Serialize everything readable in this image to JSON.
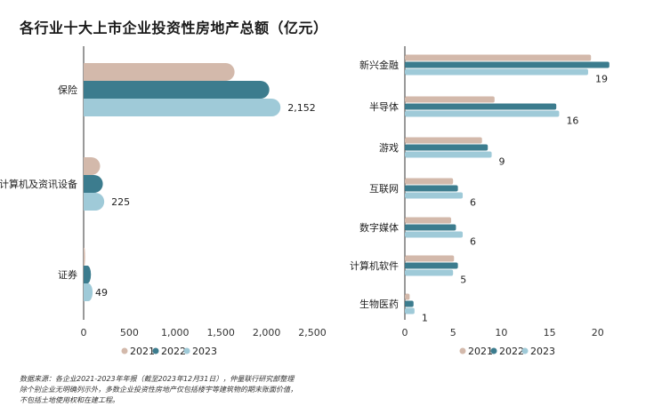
{
  "title": "各行业十大上市企业投资性房地产总额（亿元）",
  "footnote": [
    "数据来源：各企业2021-2023年年报（截至2023年12月31日），仲量联行研究部整理",
    "除个别企业无明确列示外，多数企业投资性房地产仅包括楼宇等建筑物的期末账面价值，",
    "不包括土地使用权和在建工程。"
  ],
  "colors": {
    "2021": "#d3b9ab",
    "2022": "#3c7c8e",
    "2023": "#9fcad8"
  },
  "chart_data": [
    {
      "type": "bar",
      "orientation": "horizontal",
      "categories": [
        "保险",
        "计算机及资讯设备",
        "证券"
      ],
      "series": [
        {
          "name": "2021",
          "values": [
            1650,
            180,
            8
          ]
        },
        {
          "name": "2022",
          "values": [
            2030,
            210,
            40
          ]
        },
        {
          "name": "2023",
          "values": [
            2152,
            225,
            49
          ]
        }
      ],
      "data_labels": [
        "2,152",
        "225",
        "49"
      ],
      "xlim": [
        0,
        2500
      ],
      "xticks": [
        "0",
        "500",
        "1,000",
        "1,500",
        "2,000",
        "2,500"
      ],
      "legend": [
        "2021",
        "2022",
        "2023"
      ],
      "legend_position": "bottom"
    },
    {
      "type": "bar",
      "orientation": "horizontal",
      "categories": [
        "新兴金融",
        "半导体",
        "游戏",
        "互联网",
        "数字媒体",
        "计算机软件",
        "生物医药"
      ],
      "series": [
        {
          "name": "2021",
          "values": [
            19.3,
            9.3,
            8,
            5,
            4.8,
            5.1,
            0.5
          ]
        },
        {
          "name": "2022",
          "values": [
            21.2,
            15.7,
            8.6,
            5.5,
            5.3,
            5.5,
            0.9
          ]
        },
        {
          "name": "2023",
          "values": [
            19,
            16,
            9,
            6,
            6,
            5,
            1
          ]
        }
      ],
      "data_labels": [
        "19",
        "16",
        "9",
        "6",
        "6",
        "5",
        "1"
      ],
      "xlim": [
        0,
        25
      ],
      "xticks": [
        "0",
        "5",
        "10",
        "15",
        "20"
      ],
      "legend": [
        "2021",
        "2022",
        "2023"
      ],
      "legend_position": "bottom"
    }
  ]
}
